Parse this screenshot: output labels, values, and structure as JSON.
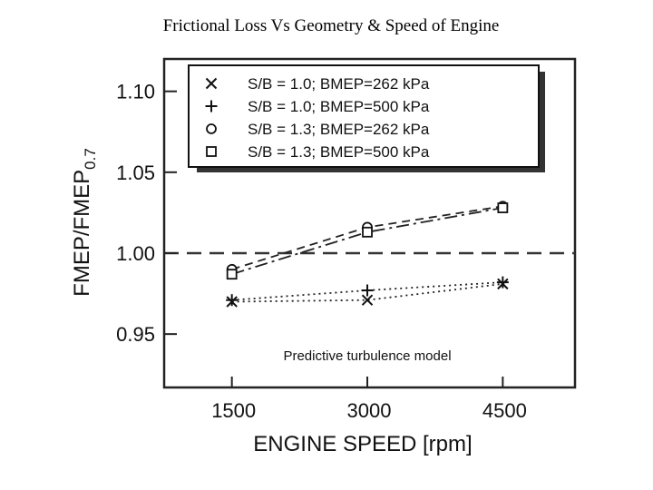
{
  "page": {
    "title": "Frictional Loss Vs Geometry & Speed of Engine"
  },
  "chart_data": {
    "type": "line",
    "title": "Frictional Loss Vs Geometry & Speed of Engine",
    "xlabel": "ENGINE SPEED [rpm]",
    "ylabel_main": "FMEP/FMEP",
    "ylabel_sub": "0.7",
    "x": [
      1500,
      3000,
      4500
    ],
    "x_tick_labels": [
      "1500",
      "3000",
      "4500"
    ],
    "y_ticks": [
      0.95,
      1.0,
      1.05,
      1.1
    ],
    "y_tick_labels": [
      "0.95",
      "1.00",
      "1.05",
      "1.10"
    ],
    "xlim": [
      750,
      5300
    ],
    "ylim": [
      0.917,
      1.12
    ],
    "reference_line": 1.0,
    "grid": false,
    "legend_position": "top-right",
    "annotation": "Predictive turbulence model",
    "series": [
      {
        "name": "S/B = 1.0; BMEP=262 kPa",
        "marker": "x",
        "line": "dotted",
        "values": [
          0.97,
          0.971,
          0.981
        ]
      },
      {
        "name": "S/B = 1.0; BMEP=500 kPa",
        "marker": "+",
        "line": "dotted",
        "values": [
          0.971,
          0.977,
          0.982
        ]
      },
      {
        "name": "S/B = 1.3; BMEP=262 kPa",
        "marker": "circle",
        "line": "dashed",
        "values": [
          0.99,
          1.016,
          1.029
        ]
      },
      {
        "name": "S/B = 1.3; BMEP=500 kPa",
        "marker": "square",
        "line": "dashdot",
        "values": [
          0.987,
          1.013,
          1.028
        ]
      }
    ]
  }
}
